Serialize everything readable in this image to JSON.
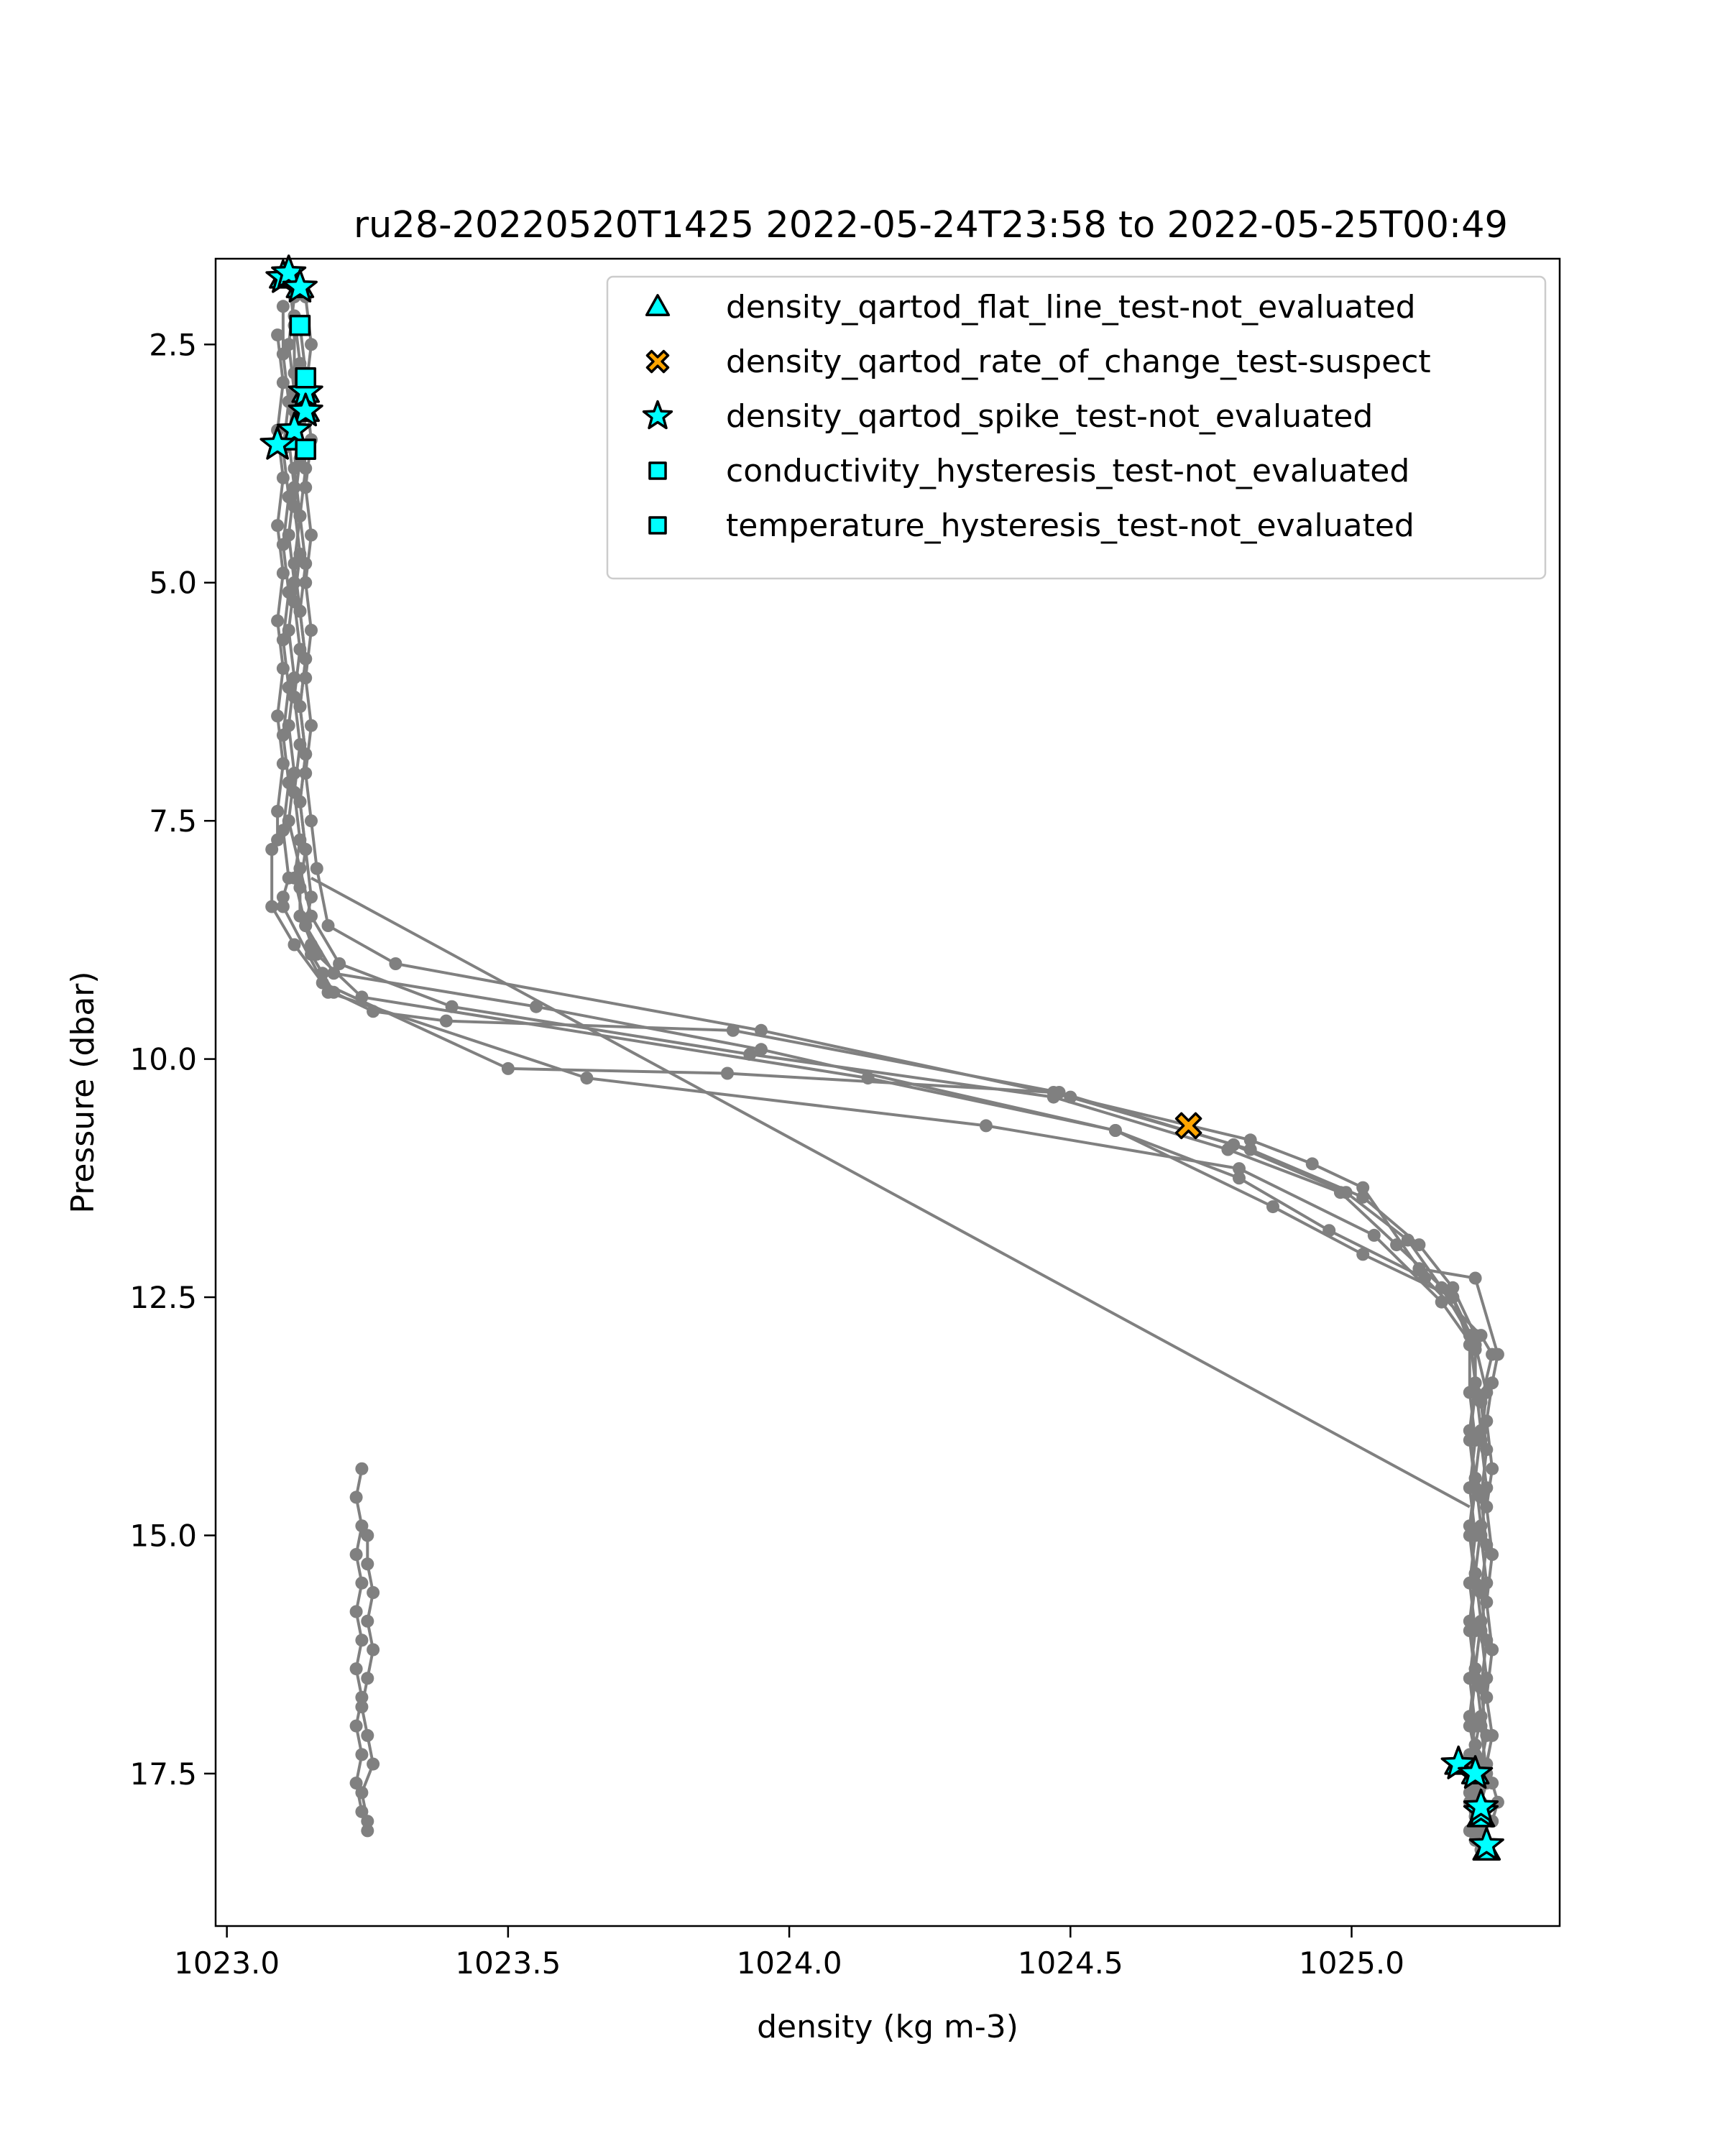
{
  "chart_data": {
    "type": "scatter",
    "title": "ru28-20220520T1425 2022-05-24T23:58 to 2022-05-25T00:49",
    "xlabel": "density (kg m-3)",
    "ylabel": "Pressure (dbar)",
    "xlim": [
      1022.98,
      1025.37
    ],
    "ylim": [
      19.1,
      1.6
    ],
    "y_inverted": true,
    "grid": false,
    "legend_position": "top-right",
    "xticks": [
      {
        "value": 1023.0,
        "label": "1023.0"
      },
      {
        "value": 1023.5,
        "label": "1023.5"
      },
      {
        "value": 1024.0,
        "label": "1024.0"
      },
      {
        "value": 1024.5,
        "label": "1024.5"
      },
      {
        "value": 1025.0,
        "label": "1025.0"
      }
    ],
    "yticks": [
      {
        "value": 2.5,
        "label": "2.5"
      },
      {
        "value": 5.0,
        "label": "5.0"
      },
      {
        "value": 7.5,
        "label": "7.5"
      },
      {
        "value": 10.0,
        "label": "10.0"
      },
      {
        "value": 12.5,
        "label": "12.5"
      },
      {
        "value": 15.0,
        "label": "15.0"
      },
      {
        "value": 17.5,
        "label": "17.5"
      }
    ],
    "profile_color": "#808080",
    "profiles": [
      {
        "x": [
          1023.11,
          1023.12,
          1023.12,
          1023.13,
          1023.12,
          1023.13,
          1023.12,
          1023.13,
          1023.14,
          1023.13,
          1023.14,
          1023.13,
          1023.14,
          1023.15,
          1023.14,
          1023.15,
          1023.15,
          1023.17,
          1023.19,
          1023.26,
          1023.39,
          1023.9,
          1024.48,
          1024.79,
          1024.99,
          1025.1,
          1025.16,
          1025.21,
          1025.22,
          1025.23,
          1025.22,
          1025.23,
          1025.22,
          1025.23,
          1025.22,
          1025.23,
          1025.22,
          1025.23,
          1025.22,
          1025.23,
          1025.23
        ],
        "y": [
          1.8,
          2.3,
          2.8,
          3.3,
          3.8,
          4.3,
          4.8,
          5.3,
          5.8,
          6.3,
          6.8,
          7.3,
          7.8,
          8.3,
          8.6,
          8.8,
          8.9,
          9.1,
          9.3,
          9.5,
          9.6,
          9.7,
          10.35,
          10.9,
          11.4,
          11.9,
          12.4,
          12.9,
          13.4,
          13.9,
          14.4,
          14.9,
          15.4,
          15.9,
          16.4,
          16.9,
          17.2,
          17.5,
          17.7,
          17.9,
          18.1
        ]
      },
      {
        "x": [
          1023.24,
          1023.23,
          1023.24,
          1023.23,
          1023.24,
          1023.23,
          1023.24,
          1023.23,
          1023.24,
          1023.23,
          1023.24,
          1023.23,
          1023.24,
          1023.25,
          1023.25,
          1023.24,
          1023.26,
          1023.25,
          1023.24,
          1023.25,
          1023.26,
          1023.25,
          1023.26,
          1023.25,
          1023.25
        ],
        "y": [
          14.3,
          14.6,
          14.9,
          15.2,
          15.5,
          15.8,
          16.1,
          16.4,
          16.7,
          17.0,
          17.3,
          17.6,
          17.9,
          18.1,
          18.0,
          17.7,
          17.4,
          17.1,
          16.8,
          16.5,
          16.2,
          15.9,
          15.6,
          15.3,
          15.0
        ]
      },
      {
        "x": [
          1023.12,
          1023.11,
          1023.12,
          1023.11,
          1023.12,
          1023.11,
          1023.12,
          1023.11,
          1023.12,
          1023.11,
          1023.12,
          1023.11,
          1023.13,
          1023.15,
          1023.2,
          1023.4,
          1023.93,
          1024.47,
          1024.78,
          1024.98,
          1025.08,
          1025.18,
          1025.22,
          1025.24,
          1025.23,
          1025.24,
          1025.23,
          1025.24,
          1025.23,
          1025.24,
          1025.23,
          1025.24,
          1025.23,
          1025.24,
          1025.24
        ],
        "y": [
          2.0,
          2.5,
          3.0,
          3.5,
          4.0,
          4.5,
          5.0,
          5.5,
          6.0,
          6.5,
          7.0,
          7.5,
          8.0,
          8.5,
          9.0,
          9.45,
          9.95,
          10.4,
          10.95,
          11.4,
          11.95,
          12.5,
          13.0,
          13.5,
          14.0,
          14.5,
          15.0,
          15.5,
          16.0,
          16.5,
          17.0,
          17.5,
          17.8,
          18.0,
          18.3
        ]
      },
      {
        "x": [
          1023.1,
          1023.1,
          1023.11,
          1023.1,
          1023.11,
          1023.1,
          1023.11,
          1023.1,
          1023.11,
          1023.1,
          1023.11,
          1023.1,
          1023.11,
          1023.1,
          1023.1,
          1023.18,
          1023.64,
          1024.35,
          1024.8,
          1025.04,
          1025.16,
          1025.22,
          1025.22,
          1025.21,
          1025.22,
          1025.21,
          1025.22,
          1025.21,
          1025.22,
          1025.21,
          1025.22,
          1025.21,
          1025.22,
          1025.21,
          1025.22,
          1025.21,
          1025.23
        ],
        "y": [
          2.1,
          2.6,
          3.1,
          3.6,
          4.1,
          4.6,
          5.1,
          5.6,
          6.1,
          6.6,
          7.1,
          7.6,
          8.1,
          8.3,
          8.4,
          9.3,
          10.2,
          10.7,
          11.15,
          11.85,
          12.55,
          13.05,
          13.5,
          14.0,
          14.5,
          15.0,
          15.5,
          16.0,
          16.5,
          17.0,
          17.3,
          17.5,
          17.65,
          17.8,
          17.95,
          18.1,
          18.3
        ]
      },
      {
        "x": [
          1023.13,
          1023.14,
          1023.13,
          1023.14,
          1023.13,
          1023.14,
          1023.13,
          1023.14,
          1023.13,
          1023.14,
          1023.13,
          1023.14,
          1023.13,
          1023.13,
          1023.16,
          1023.24,
          1024.14,
          1024.58,
          1024.86,
          1025.02,
          1025.18,
          1025.21,
          1025.21,
          1025.22,
          1025.21,
          1025.22,
          1025.21,
          1025.22,
          1025.21,
          1025.22,
          1025.21,
          1025.22,
          1025.21,
          1025.22,
          1025.22
        ],
        "y": [
          2.3,
          2.8,
          3.3,
          3.8,
          4.3,
          4.8,
          5.3,
          5.8,
          6.3,
          6.8,
          7.3,
          7.8,
          8.2,
          8.5,
          8.9,
          9.35,
          10.2,
          10.75,
          11.55,
          12.05,
          12.5,
          13.0,
          13.5,
          14.0,
          14.5,
          15.0,
          15.5,
          16.0,
          16.5,
          17.0,
          17.3,
          17.5,
          17.7,
          17.9,
          18.1
        ]
      },
      {
        "x": [
          1023.09,
          1023.1,
          1023.09,
          1023.1,
          1023.09,
          1023.1,
          1023.09,
          1023.1,
          1023.09,
          1023.1,
          1023.09,
          1023.09,
          1023.08,
          1023.08,
          1023.12,
          1023.17,
          1023.5,
          1023.89,
          1024.47,
          1024.82,
          1025.02,
          1025.12,
          1025.18,
          1025.22,
          1025.22,
          1025.21,
          1025.22,
          1025.21,
          1025.22,
          1025.21,
          1025.22,
          1025.21,
          1025.22,
          1025.21,
          1025.22,
          1025.22
        ],
        "y": [
          2.4,
          2.9,
          3.4,
          3.9,
          4.4,
          4.9,
          5.4,
          5.9,
          6.4,
          6.9,
          7.4,
          7.7,
          7.8,
          8.4,
          8.8,
          9.2,
          10.1,
          10.15,
          10.35,
          10.95,
          11.45,
          11.95,
          12.4,
          12.9,
          13.4,
          13.9,
          14.4,
          14.9,
          15.4,
          15.9,
          16.4,
          16.9,
          17.2,
          17.45,
          17.7,
          17.95
        ]
      },
      {
        "x": [
          1023.12,
          1023.13,
          1023.12,
          1023.13,
          1023.12,
          1023.13,
          1023.12,
          1023.13,
          1023.12,
          1023.13,
          1023.12,
          1023.13,
          1023.12,
          1023.14,
          1023.19,
          1023.55,
          1023.95,
          1024.58,
          1024.8,
          1024.96,
          1025.13,
          1025.23,
          1025.25,
          1025.23,
          1025.24,
          1025.23,
          1025.24,
          1025.23,
          1025.24,
          1025.23,
          1025.24,
          1025.23,
          1025.24,
          1025.23,
          1025.25,
          1025.22
        ],
        "y": [
          2.2,
          2.7,
          3.2,
          3.7,
          4.2,
          4.7,
          5.2,
          5.7,
          6.2,
          6.7,
          7.2,
          7.7,
          8.1,
          8.6,
          9.1,
          9.45,
          9.9,
          10.75,
          11.25,
          11.8,
          12.3,
          12.9,
          13.1,
          13.6,
          14.1,
          14.6,
          15.1,
          15.6,
          16.1,
          16.6,
          17.1,
          17.4,
          17.6,
          17.8,
          18.0,
          18.2
        ]
      },
      {
        "x": [
          1023.14,
          1023.15,
          1023.14,
          1023.15,
          1023.14,
          1023.15,
          1023.14,
          1023.15,
          1023.14,
          1023.15,
          1023.14,
          1023.15,
          1023.16,
          1023.18,
          1023.3,
          1023.95,
          1024.5,
          1024.82,
          1024.93,
          1025.02,
          1025.12,
          1025.22,
          1025.26,
          1025.25,
          1025.24,
          1025.25,
          1025.24,
          1025.25,
          1025.24,
          1025.25,
          1025.24,
          1025.25,
          1025.24,
          1025.25,
          1025.26,
          1025.25
        ],
        "y": [
          2.0,
          2.5,
          3.0,
          3.5,
          4.0,
          4.5,
          5.0,
          5.5,
          6.0,
          6.5,
          7.0,
          7.5,
          8.0,
          8.6,
          9.0,
          9.7,
          10.4,
          10.85,
          11.1,
          11.35,
          12.2,
          12.3,
          13.1,
          13.4,
          13.8,
          14.3,
          14.7,
          15.2,
          15.7,
          16.2,
          16.7,
          17.1,
          17.4,
          17.6,
          17.8,
          18.0
        ]
      },
      {
        "x": [
          1023.15,
          1025.21
        ],
        "y": [
          8.1,
          14.7
        ]
      }
    ],
    "flags": [
      {
        "name": "density_qartod_flat_line_test-not_evaluated",
        "marker": "triangle",
        "color": "#00ffff",
        "x": [
          1023.1,
          1023.11,
          1023.13,
          1023.14,
          1023.14,
          1023.12,
          1025.19,
          1025.22,
          1025.23,
          1025.24
        ],
        "y": [
          1.8,
          1.75,
          1.9,
          3.0,
          3.2,
          3.5,
          17.4,
          17.5,
          17.95,
          18.3
        ]
      },
      {
        "name": "density_qartod_rate_of_change_test-suspect",
        "marker": "x",
        "color": "#ffa500",
        "x": [
          1024.71
        ],
        "y": [
          10.7
        ]
      },
      {
        "name": "density_qartod_spike_test-not_evaluated",
        "marker": "star",
        "color": "#00ffff",
        "x": [
          1023.1,
          1023.11,
          1023.13,
          1023.14,
          1023.14,
          1023.12,
          1023.09,
          1025.19,
          1025.22,
          1025.23,
          1025.24,
          1025.23
        ],
        "y": [
          1.8,
          1.75,
          1.9,
          3.0,
          3.2,
          3.4,
          3.55,
          17.4,
          17.5,
          17.9,
          18.25,
          17.85
        ]
      },
      {
        "name": "conductivity_hysteresis_test-not_evaluated",
        "marker": "square",
        "color": "#00ffff",
        "x": [
          1023.13,
          1023.14,
          1023.14
        ],
        "y": [
          2.3,
          2.85,
          3.6
        ]
      },
      {
        "name": "temperature_hysteresis_test-not_evaluated",
        "marker": "square",
        "color": "#00ffff",
        "x": [
          1023.13,
          1023.14,
          1023.14
        ],
        "y": [
          2.3,
          2.85,
          3.6
        ]
      }
    ]
  }
}
